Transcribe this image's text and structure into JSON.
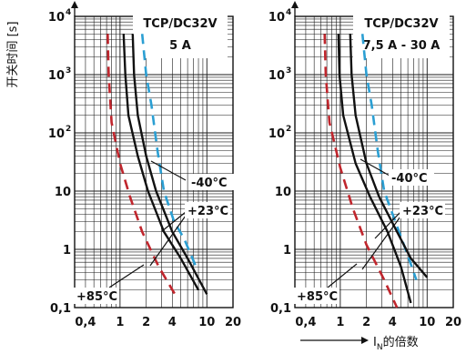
{
  "chart_data": [
    {
      "type": "line",
      "x_scale": "log",
      "y_scale": "log",
      "xlim": [
        0.3,
        20
      ],
      "ylim": [
        0.1,
        10000
      ],
      "x_ticks": [
        {
          "value": 0.4,
          "label": "0,4"
        },
        {
          "value": 1,
          "label": "1"
        },
        {
          "value": 2,
          "label": "2"
        },
        {
          "value": 4,
          "label": "4"
        },
        {
          "value": 10,
          "label": "10"
        },
        {
          "value": 20,
          "label": "20"
        }
      ],
      "y_ticks": [
        {
          "value": 0.1,
          "label": "0,1"
        },
        {
          "value": 1,
          "label": "1"
        },
        {
          "value": 10,
          "label": "10"
        },
        {
          "value": 100,
          "label": "10",
          "exp": "2"
        },
        {
          "value": 1000,
          "label": "10",
          "exp": "3"
        },
        {
          "value": 10000,
          "label": "10",
          "exp": "4"
        }
      ],
      "ylabel": "开关时间 [s]",
      "box_lines": [
        "TCP/DC32V",
        "5 A"
      ],
      "series": [
        {
          "name": "-40°C",
          "style": "dashed",
          "color": "#2b9fd3",
          "points": [
            [
              1.8,
              5000
            ],
            [
              2.0,
              1000
            ],
            [
              2.3,
              300
            ],
            [
              2.7,
              50
            ],
            [
              3.2,
              10
            ],
            [
              4.2,
              3
            ],
            [
              5.5,
              1.5
            ],
            [
              7.5,
              0.5
            ]
          ]
        },
        {
          "name": "-40°C",
          "style": "solid",
          "color": "#111111",
          "points": [
            [
              1.4,
              5000
            ],
            [
              1.45,
              1000
            ],
            [
              1.6,
              200
            ],
            [
              2.0,
              40
            ],
            [
              2.6,
              10
            ],
            [
              4.0,
              2
            ],
            [
              6.0,
              0.7
            ],
            [
              10.0,
              0.17
            ]
          ]
        },
        {
          "name": "+23°C",
          "style": "solid",
          "color": "#111111",
          "points": [
            [
              1.1,
              5000
            ],
            [
              1.15,
              1000
            ],
            [
              1.25,
              200
            ],
            [
              1.6,
              40
            ],
            [
              2.1,
              10
            ],
            [
              3.2,
              2
            ],
            [
              5.0,
              0.7
            ],
            [
              8.0,
              0.2
            ]
          ]
        },
        {
          "name": "+85°C",
          "style": "dashed",
          "color": "#c0262d",
          "points": [
            [
              0.72,
              5000
            ],
            [
              0.74,
              1000
            ],
            [
              0.8,
              150
            ],
            [
              1.0,
              30
            ],
            [
              1.3,
              8
            ],
            [
              1.8,
              2
            ],
            [
              2.8,
              0.5
            ],
            [
              4.5,
              0.15
            ]
          ]
        }
      ],
      "annotations": [
        {
          "text": "-40°C",
          "x": 7.2,
          "y": 4.5
        },
        {
          "text": "+23°C",
          "x": 7.2,
          "y": 0.75
        },
        {
          "text": "+85°C",
          "x": 0.42,
          "y": 0.1
        }
      ]
    },
    {
      "type": "line",
      "x_scale": "log",
      "y_scale": "log",
      "xlim": [
        0.3,
        20
      ],
      "ylim": [
        0.1,
        10000
      ],
      "x_ticks": [
        {
          "value": 0.4,
          "label": "0,4"
        },
        {
          "value": 1,
          "label": "1"
        },
        {
          "value": 2,
          "label": "2"
        },
        {
          "value": 4,
          "label": "4"
        },
        {
          "value": 10,
          "label": "10"
        },
        {
          "value": 20,
          "label": "20"
        }
      ],
      "y_ticks": [
        {
          "value": 0.1,
          "label": "0,1"
        },
        {
          "value": 1,
          "label": "1"
        },
        {
          "value": 10,
          "label": "10"
        },
        {
          "value": 100,
          "label": "10",
          "exp": "2"
        },
        {
          "value": 1000,
          "label": "10",
          "exp": "3"
        },
        {
          "value": 10000,
          "label": "10",
          "exp": "4"
        }
      ],
      "xlabel": "I_N的倍数",
      "box_lines": [
        "TCP/DC32V",
        "7,5 A - 30 A"
      ],
      "series": [
        {
          "name": "-40°C",
          "style": "dashed",
          "color": "#2b9fd3",
          "points": [
            [
              1.8,
              5000
            ],
            [
              2.0,
              1000
            ],
            [
              2.3,
              300
            ],
            [
              2.7,
              50
            ],
            [
              3.2,
              10
            ],
            [
              4.5,
              2.5
            ],
            [
              5.8,
              0.9
            ],
            [
              7.5,
              0.3
            ]
          ]
        },
        {
          "name": "-40°C",
          "style": "solid",
          "color": "#111111",
          "points": [
            [
              1.3,
              5000
            ],
            [
              1.35,
              1000
            ],
            [
              1.5,
              200
            ],
            [
              2.0,
              30
            ],
            [
              2.8,
              8
            ],
            [
              4.5,
              2
            ],
            [
              6.5,
              0.7
            ],
            [
              10.0,
              0.33
            ]
          ]
        },
        {
          "name": "+23°C",
          "style": "solid",
          "color": "#111111",
          "points": [
            [
              0.95,
              5000
            ],
            [
              0.98,
              1000
            ],
            [
              1.08,
              200
            ],
            [
              1.5,
              30
            ],
            [
              2.2,
              8
            ],
            [
              3.5,
              2
            ],
            [
              5.0,
              0.5
            ],
            [
              6.5,
              0.12
            ]
          ]
        },
        {
          "name": "+85°C",
          "style": "dashed",
          "color": "#c0262d",
          "points": [
            [
              0.66,
              5000
            ],
            [
              0.68,
              1000
            ],
            [
              0.75,
              150
            ],
            [
              1.0,
              25
            ],
            [
              1.4,
              5
            ],
            [
              2.0,
              1.2
            ],
            [
              3.2,
              0.3
            ],
            [
              4.5,
              0.1
            ]
          ]
        }
      ],
      "annotations": [
        {
          "text": "-40°C",
          "x": 6.0,
          "y": 4.5
        },
        {
          "text": "+23°C",
          "x": 6.5,
          "y": 0.75
        },
        {
          "text": "+85°C",
          "x": 0.4,
          "y": 0.1
        }
      ]
    }
  ]
}
